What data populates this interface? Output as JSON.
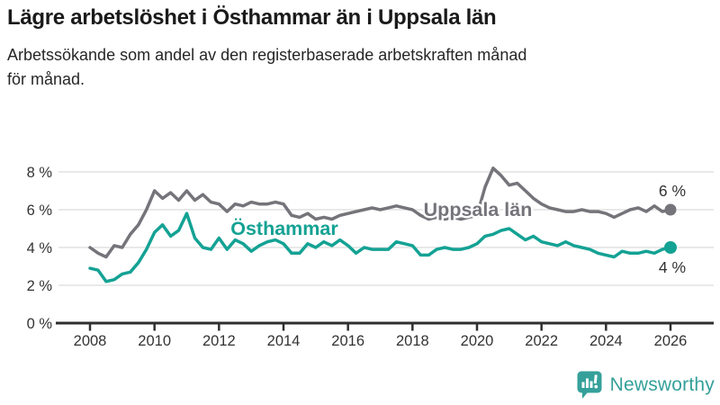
{
  "header": {
    "title": "Lägre arbetslöshet i Östhammar än i Uppsala län",
    "subtitle_lines": [
      "Arbetssökande som andel av den registerbaserade arbetskraften månad",
      "för månad."
    ]
  },
  "branding": {
    "name": "Newsworthy",
    "logo_icon": "bar-chart-speech-bubble-icon",
    "color": "#35a09a"
  },
  "chart_data": {
    "type": "line",
    "title": "Lägre arbetslöshet i Östhammar än i Uppsala län",
    "subtitle": "Arbetssökande som andel av den registerbaserade arbetskraften månad för månad.",
    "x": {
      "start": 2008,
      "step": 0.25,
      "end": 2026
    },
    "series": [
      {
        "name": "Uppsala län",
        "color": "#74747a",
        "end_label": "6 %",
        "end_value": 6.0,
        "values": [
          4.0,
          3.7,
          3.5,
          4.1,
          4.0,
          4.7,
          5.2,
          6.0,
          7.0,
          6.6,
          6.9,
          6.5,
          7.0,
          6.5,
          6.8,
          6.4,
          6.3,
          5.9,
          6.3,
          6.2,
          6.4,
          6.3,
          6.3,
          6.4,
          6.3,
          5.7,
          5.6,
          5.8,
          5.5,
          5.6,
          5.5,
          5.7,
          5.8,
          5.9,
          6.0,
          6.1,
          6.0,
          6.1,
          6.2,
          6.1,
          6.0,
          5.7,
          5.5,
          5.6,
          5.5,
          5.6,
          5.5,
          5.6,
          5.7,
          7.2,
          8.2,
          7.8,
          7.3,
          7.4,
          7.0,
          6.6,
          6.3,
          6.1,
          6.0,
          5.9,
          5.9,
          6.0,
          5.9,
          5.9,
          5.8,
          5.6,
          5.8,
          6.0,
          6.1,
          5.9,
          6.2,
          5.9,
          6.0
        ]
      },
      {
        "name": "Östhammar",
        "color": "#14a294",
        "end_label": "4 %",
        "end_value": 4.0,
        "values": [
          2.9,
          2.8,
          2.2,
          2.3,
          2.6,
          2.7,
          3.2,
          3.9,
          4.8,
          5.2,
          4.6,
          4.9,
          5.8,
          4.5,
          4.0,
          3.9,
          4.5,
          3.9,
          4.4,
          4.2,
          3.8,
          4.1,
          4.3,
          4.4,
          4.2,
          3.7,
          3.7,
          4.2,
          4.0,
          4.3,
          4.1,
          4.4,
          4.1,
          3.7,
          4.0,
          3.9,
          3.9,
          3.9,
          4.3,
          4.2,
          4.1,
          3.6,
          3.6,
          3.9,
          4.0,
          3.9,
          3.9,
          4.0,
          4.2,
          4.6,
          4.7,
          4.9,
          5.0,
          4.7,
          4.4,
          4.6,
          4.3,
          4.2,
          4.1,
          4.3,
          4.1,
          4.0,
          3.9,
          3.7,
          3.6,
          3.5,
          3.8,
          3.7,
          3.7,
          3.8,
          3.7,
          3.9,
          4.0
        ]
      }
    ],
    "xticks": [
      "2008",
      "2010",
      "2012",
      "2014",
      "2016",
      "2018",
      "2020",
      "2022",
      "2024",
      "2026"
    ],
    "yticks": [
      {
        "label": "0 %",
        "value": 0
      },
      {
        "label": "2 %",
        "value": 2
      },
      {
        "label": "4 %",
        "value": 4
      },
      {
        "label": "6 %",
        "value": 6
      },
      {
        "label": "8 %",
        "value": 8
      }
    ],
    "ylim": [
      0,
      8.6
    ],
    "xlim": [
      2008,
      2026.3
    ],
    "grid": true,
    "legend": "inline-labels",
    "colors": {
      "grid": "#dcdcdc",
      "axis": "#2f2f2f",
      "tick_text": "#333333",
      "end_label_text": "#333333"
    }
  }
}
